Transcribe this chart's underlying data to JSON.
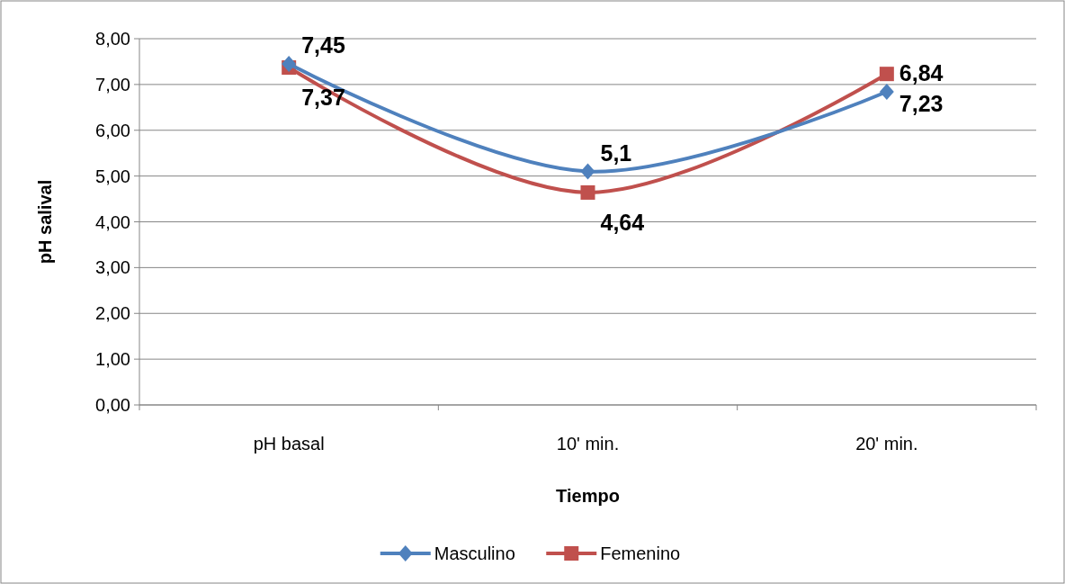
{
  "chart_data": {
    "type": "line",
    "xlabel": "Tiempo",
    "ylabel": "pH salival",
    "categories": [
      "pH basal",
      "10' min.",
      "20' min."
    ],
    "series": [
      {
        "name": "Masculino",
        "color": "#4f81bd",
        "marker": "diamond",
        "values": [
          7.45,
          5.1,
          6.84
        ],
        "value_labels": [
          "7,45",
          "5,1",
          "6,84"
        ]
      },
      {
        "name": "Femenino",
        "color": "#c0504d",
        "marker": "square",
        "values": [
          7.37,
          4.64,
          7.23
        ],
        "value_labels": [
          "7,37",
          "4,64",
          "7,23"
        ]
      }
    ],
    "ylim": [
      0,
      8
    ],
    "yticks": [
      {
        "value": 0,
        "label": "0,00"
      },
      {
        "value": 1,
        "label": "1,00"
      },
      {
        "value": 2,
        "label": "2,00"
      },
      {
        "value": 3,
        "label": "3,00"
      },
      {
        "value": 4,
        "label": "4,00"
      },
      {
        "value": 5,
        "label": "5,00"
      },
      {
        "value": 6,
        "label": "6,00"
      },
      {
        "value": 7,
        "label": "7,00"
      },
      {
        "value": 8,
        "label": "8,00"
      }
    ],
    "grid": "y",
    "legend": "bottom"
  }
}
